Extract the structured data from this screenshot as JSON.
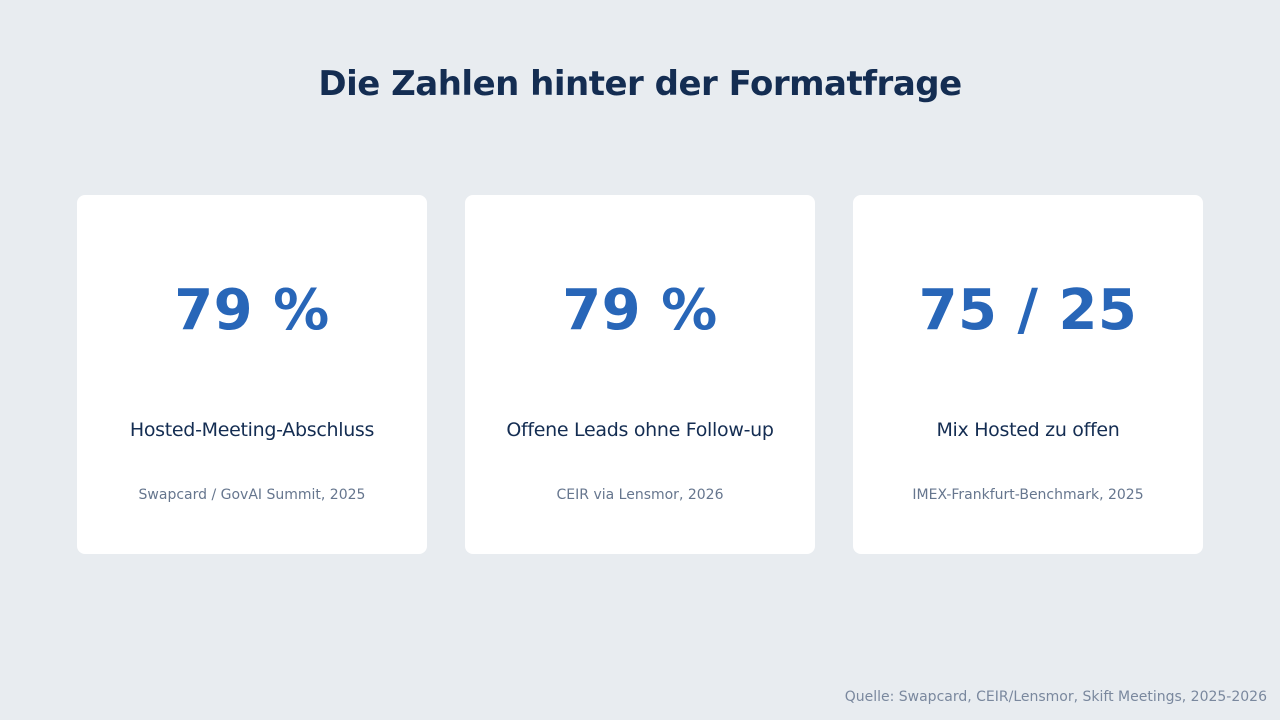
{
  "title": "Die Zahlen hinter der Formatfrage",
  "cards": [
    {
      "stat": "79 %",
      "label": "Hosted-Meeting-Abschluss",
      "source": "Swapcard / GovAI Summit, 2025"
    },
    {
      "stat": "79 %",
      "label": "Offene Leads ohne Follow-up",
      "source": "CEIR via Lensmor, 2026"
    },
    {
      "stat": "75 / 25",
      "label": "Mix Hosted zu offen",
      "source": "IMEX-Frankfurt-Benchmark, 2025"
    }
  ],
  "footer": "Quelle: Swapcard, CEIR/Lensmor, Skift Meetings, 2025-2026",
  "colors": {
    "background": "#e8ecf0",
    "card": "#ffffff",
    "title": "#142d52",
    "stat": "#2866b8",
    "source": "#66768e"
  }
}
